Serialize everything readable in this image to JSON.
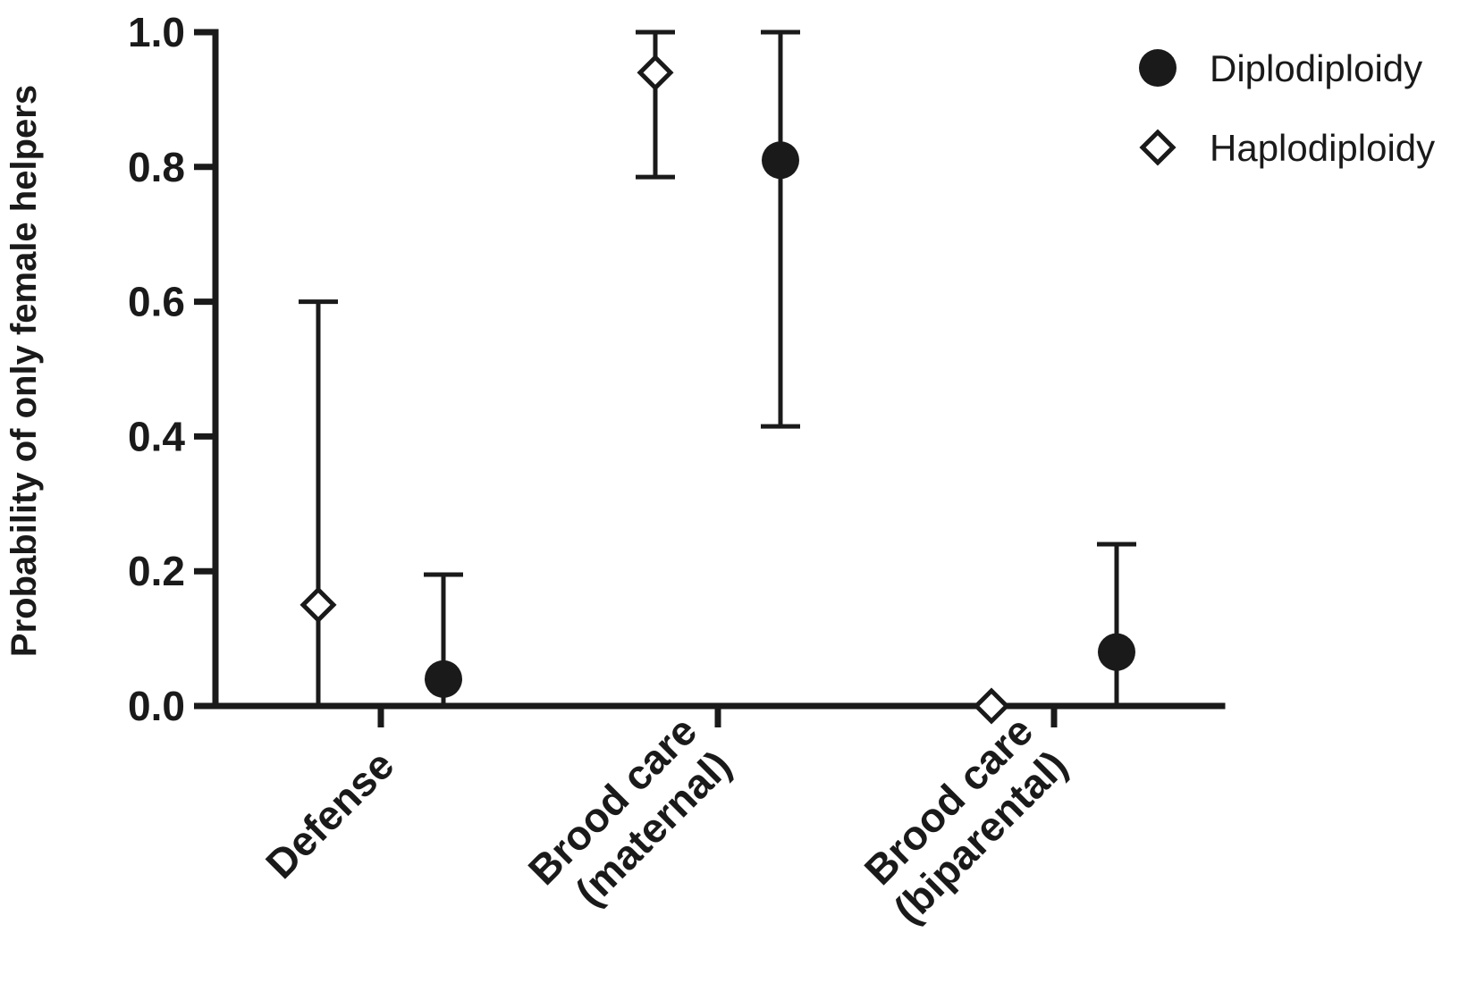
{
  "chart_data": {
    "type": "scatter",
    "title": "",
    "ylabel": "Probability of only female helpers",
    "xlabel": "",
    "ylim": [
      0,
      1.0
    ],
    "yticks": [
      "0.0",
      "0.2",
      "0.4",
      "0.6",
      "0.8",
      "1.0"
    ],
    "grid": false,
    "legend_position": "top-right",
    "categories": [
      [
        "Defense"
      ],
      [
        "Brood care",
        "(maternal)"
      ],
      [
        "Brood care",
        "(biparental)"
      ]
    ],
    "series": [
      {
        "name": "Diplodiploidy",
        "marker": "filled-circle",
        "color": "#1a1a1a",
        "points": [
          {
            "category": 0,
            "y": 0.04,
            "lower": 0.0,
            "upper": 0.195
          },
          {
            "category": 1,
            "y": 0.81,
            "lower": 0.415,
            "upper": 1.0
          },
          {
            "category": 2,
            "y": 0.08,
            "lower": 0.0,
            "upper": 0.24
          }
        ]
      },
      {
        "name": "Haplodiploidy",
        "marker": "open-diamond",
        "color": "#1a1a1a",
        "points": [
          {
            "category": 0,
            "y": 0.15,
            "lower": 0.0,
            "upper": 0.6
          },
          {
            "category": 1,
            "y": 0.94,
            "lower": 0.785,
            "upper": 1.0
          },
          {
            "category": 2,
            "y": 0.0,
            "lower": 0.0,
            "upper": 0.0
          }
        ]
      }
    ]
  }
}
